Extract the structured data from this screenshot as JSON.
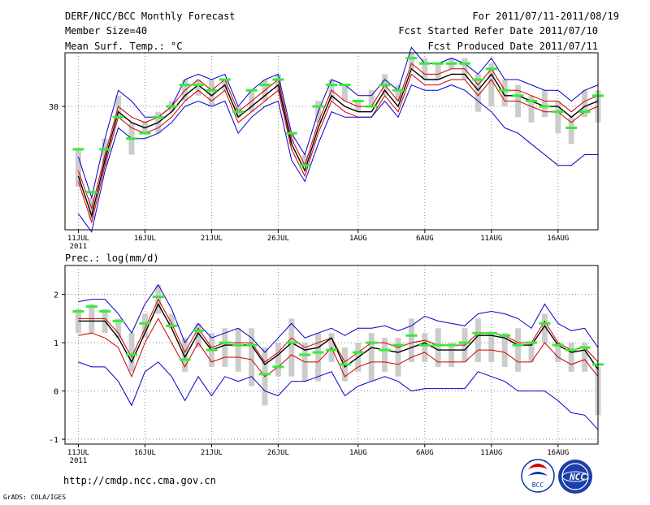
{
  "header": {
    "title": "DERF/NCC/BCC Monthly Forecast",
    "member_size": "Member Size=40",
    "variable": "Mean Surf. Temp.: °C",
    "period": "For 2011/07/11-2011/08/19",
    "started": "Fcst Started Refer Date 2011/07/10",
    "produced": "Fcst Produced Date 2011/07/11"
  },
  "x_ticks": [
    {
      "day": 0,
      "label": "11JUL"
    },
    {
      "day": 5,
      "label": "16JUL"
    },
    {
      "day": 10,
      "label": "21JUL"
    },
    {
      "day": 15,
      "label": "26JUL"
    },
    {
      "day": 21,
      "label": "1AUG"
    },
    {
      "day": 26,
      "label": "6AUG"
    },
    {
      "day": 31,
      "label": "11AUG"
    },
    {
      "day": 36,
      "label": "16AUG"
    }
  ],
  "year_label": "2011",
  "footer": {
    "url": "http://cmdp.ncc.cma.gov.cn",
    "credit": "GrADS: COLA/IGES",
    "logo1_text": "BCC",
    "logo2_text": "NCC"
  },
  "colors": {
    "blue": "#0000cc",
    "red": "#cc0000",
    "black": "#000000",
    "green": "#33ee33",
    "gray": "#cccccc",
    "grid": "#888888"
  },
  "chart_data": [
    {
      "type": "line",
      "title": "Mean Surf. Temp.: °C",
      "x_unit": "day since 2011-07-11",
      "xlim": [
        -1,
        39
      ],
      "ylim": [
        18.5,
        35.0
      ],
      "y_ticks": [
        30
      ],
      "grid": "dotted",
      "days": [
        0,
        1,
        2,
        3,
        4,
        5,
        6,
        7,
        8,
        9,
        10,
        11,
        12,
        13,
        14,
        15,
        16,
        17,
        18,
        19,
        20,
        21,
        22,
        23,
        24,
        25,
        26,
        27,
        28,
        29,
        30,
        31,
        32,
        33,
        34,
        35,
        36,
        37,
        38,
        39
      ],
      "series": [
        {
          "name": "max",
          "color": "blue",
          "values": [
            25.3,
            21.5,
            27.0,
            31.5,
            30.5,
            29.0,
            29.0,
            30.0,
            32.5,
            33.0,
            32.5,
            33.0,
            30.0,
            31.5,
            32.5,
            33.0,
            27.5,
            25.5,
            29.5,
            32.5,
            32.0,
            31.0,
            31.0,
            32.5,
            31.5,
            35.5,
            34.0,
            34.0,
            34.5,
            34.0,
            33.0,
            34.5,
            32.5,
            32.5,
            32.0,
            31.5,
            31.5,
            30.5,
            31.5,
            32.0
          ]
        },
        {
          "name": "upper",
          "color": "red",
          "values": [
            24.0,
            20.5,
            25.5,
            30.0,
            29.0,
            28.5,
            29.0,
            30.0,
            31.5,
            32.5,
            31.5,
            32.5,
            29.5,
            30.5,
            31.5,
            32.5,
            27.0,
            24.5,
            28.5,
            31.5,
            30.5,
            30.0,
            30.0,
            32.0,
            30.5,
            34.0,
            33.0,
            33.0,
            33.5,
            33.5,
            32.0,
            33.5,
            31.5,
            31.5,
            31.0,
            30.5,
            30.5,
            29.5,
            30.5,
            31.0
          ]
        },
        {
          "name": "mean",
          "color": "black",
          "values": [
            23.5,
            19.8,
            25.0,
            29.5,
            28.5,
            28.0,
            28.5,
            29.5,
            31.0,
            32.0,
            31.0,
            32.0,
            29.0,
            30.0,
            31.0,
            32.0,
            26.5,
            24.0,
            28.0,
            31.0,
            30.0,
            29.5,
            29.5,
            31.5,
            30.0,
            33.5,
            32.5,
            32.5,
            33.0,
            33.0,
            31.5,
            33.0,
            31.0,
            31.0,
            30.5,
            30.0,
            30.0,
            29.0,
            30.0,
            30.5
          ]
        },
        {
          "name": "lower",
          "color": "red",
          "values": [
            23.0,
            19.2,
            24.5,
            29.0,
            28.0,
            27.5,
            28.0,
            29.0,
            30.5,
            31.5,
            30.5,
            31.5,
            28.5,
            29.5,
            30.5,
            31.5,
            26.0,
            23.5,
            27.5,
            30.5,
            29.5,
            29.0,
            29.0,
            31.0,
            29.5,
            33.0,
            32.0,
            32.0,
            32.5,
            32.5,
            31.0,
            32.5,
            30.5,
            30.5,
            30.0,
            29.5,
            29.5,
            28.5,
            29.5,
            30.0
          ]
        },
        {
          "name": "min",
          "color": "blue",
          "values": [
            20.0,
            18.3,
            24.0,
            28.0,
            27.0,
            27.0,
            27.5,
            28.5,
            30.0,
            30.5,
            30.0,
            30.5,
            27.5,
            29.0,
            30.0,
            30.5,
            25.0,
            23.0,
            26.5,
            29.5,
            29.0,
            29.0,
            29.0,
            30.5,
            29.0,
            32.0,
            31.5,
            31.5,
            32.0,
            31.5,
            30.5,
            29.5,
            28.0,
            27.5,
            26.5,
            25.5,
            24.5,
            24.5,
            25.5,
            25.5
          ]
        }
      ],
      "range_bars": [
        [
          22.5,
          26.0
        ],
        [
          19.5,
          21.5
        ],
        [
          24.5,
          27.0
        ],
        [
          29.0,
          31.0
        ],
        [
          25.5,
          28.5
        ],
        [
          27.5,
          28.5
        ],
        [
          27.5,
          29.5
        ],
        [
          29.5,
          30.5
        ],
        [
          30.5,
          32.5
        ],
        [
          31.0,
          32.5
        ],
        [
          30.0,
          32.5
        ],
        [
          31.5,
          32.5
        ],
        [
          29.0,
          30.0
        ],
        [
          29.5,
          31.5
        ],
        [
          30.5,
          32.5
        ],
        [
          31.5,
          33.0
        ],
        [
          26.5,
          27.5
        ],
        [
          24.5,
          25.5
        ],
        [
          28.5,
          30.5
        ],
        [
          30.5,
          32.5
        ],
        [
          30.5,
          32.0
        ],
        [
          29.5,
          30.5
        ],
        [
          30.0,
          31.5
        ],
        [
          31.0,
          33.0
        ],
        [
          30.5,
          32.0
        ],
        [
          33.5,
          35.0
        ],
        [
          32.5,
          34.5
        ],
        [
          32.5,
          34.0
        ],
        [
          33.5,
          34.5
        ],
        [
          32.5,
          34.5
        ],
        [
          29.5,
          33.0
        ],
        [
          30.0,
          34.0
        ],
        [
          30.0,
          32.5
        ],
        [
          29.0,
          32.0
        ],
        [
          28.5,
          31.0
        ],
        [
          29.0,
          31.5
        ],
        [
          27.5,
          30.5
        ],
        [
          26.5,
          29.0
        ],
        [
          29.0,
          31.5
        ],
        [
          28.5,
          31.5
        ]
      ],
      "observed": [
        26.0,
        22.0,
        26.0,
        29.0,
        27.0,
        27.5,
        29.0,
        30.0,
        32.0,
        32.0,
        31.5,
        32.5,
        29.5,
        31.5,
        32.0,
        32.5,
        27.5,
        24.5,
        30.0,
        32.0,
        32.0,
        30.5,
        30.0,
        32.0,
        31.5,
        34.5,
        34.0,
        34.0,
        34.0,
        34.0,
        32.5,
        33.5,
        31.5,
        31.0,
        30.5,
        30.0,
        29.5,
        28.0,
        29.5,
        31.0
      ]
    },
    {
      "type": "line",
      "title": "Prec.: log(mm/d)",
      "x_unit": "day since 2011-07-11",
      "xlim": [
        -1,
        39
      ],
      "ylim": [
        -1.1,
        2.6
      ],
      "y_ticks": [
        -1,
        0,
        1,
        2
      ],
      "grid": "dotted",
      "days": [
        0,
        1,
        2,
        3,
        4,
        5,
        6,
        7,
        8,
        9,
        10,
        11,
        12,
        13,
        14,
        15,
        16,
        17,
        18,
        19,
        20,
        21,
        22,
        23,
        24,
        25,
        26,
        27,
        28,
        29,
        30,
        31,
        32,
        33,
        34,
        35,
        36,
        37,
        38,
        39
      ],
      "series": [
        {
          "name": "max",
          "color": "blue",
          "values": [
            1.85,
            1.9,
            1.9,
            1.6,
            1.2,
            1.8,
            2.2,
            1.7,
            1.0,
            1.4,
            1.1,
            1.2,
            1.3,
            1.1,
            0.8,
            1.1,
            1.4,
            1.1,
            1.2,
            1.3,
            1.15,
            1.3,
            1.3,
            1.35,
            1.25,
            1.35,
            1.55,
            1.45,
            1.4,
            1.35,
            1.6,
            1.65,
            1.6,
            1.5,
            1.3,
            1.8,
            1.4,
            1.25,
            1.3,
            0.9
          ]
        },
        {
          "name": "upper",
          "color": "red",
          "values": [
            1.5,
            1.5,
            1.5,
            1.2,
            0.7,
            1.3,
            1.9,
            1.4,
            0.8,
            1.3,
            0.9,
            1.0,
            1.0,
            1.0,
            0.6,
            0.8,
            1.1,
            0.9,
            1.0,
            1.1,
            0.6,
            0.8,
            1.0,
            1.0,
            0.9,
            1.0,
            1.05,
            0.95,
            0.95,
            0.95,
            1.2,
            1.2,
            1.15,
            1.0,
            1.0,
            1.45,
            1.0,
            0.85,
            0.9,
            0.6
          ]
        },
        {
          "name": "mean",
          "color": "black",
          "values": [
            1.45,
            1.45,
            1.45,
            1.1,
            0.6,
            1.2,
            1.8,
            1.3,
            0.7,
            1.2,
            0.85,
            0.95,
            0.95,
            0.95,
            0.55,
            0.75,
            1.0,
            0.85,
            0.9,
            1.1,
            0.5,
            0.7,
            0.9,
            0.85,
            0.8,
            0.9,
            1.0,
            0.85,
            0.85,
            0.85,
            1.15,
            1.15,
            1.1,
            0.95,
            0.95,
            1.35,
            0.95,
            0.8,
            0.85,
            0.45
          ]
        },
        {
          "name": "lower",
          "color": "red",
          "values": [
            1.15,
            1.2,
            1.1,
            0.9,
            0.3,
            1.0,
            1.5,
            1.0,
            0.5,
            1.0,
            0.6,
            0.7,
            0.7,
            0.65,
            0.3,
            0.5,
            0.75,
            0.6,
            0.6,
            0.9,
            0.3,
            0.5,
            0.6,
            0.6,
            0.55,
            0.7,
            0.8,
            0.6,
            0.6,
            0.6,
            0.85,
            0.85,
            0.8,
            0.6,
            0.6,
            1.0,
            0.7,
            0.55,
            0.65,
            0.3
          ]
        },
        {
          "name": "min",
          "color": "blue",
          "values": [
            0.6,
            0.5,
            0.5,
            0.2,
            -0.3,
            0.4,
            0.6,
            0.3,
            -0.2,
            0.3,
            -0.1,
            0.3,
            0.2,
            0.3,
            0.0,
            -0.1,
            0.2,
            0.2,
            0.3,
            0.4,
            -0.1,
            0.1,
            0.2,
            0.3,
            0.2,
            0.0,
            0.05,
            0.05,
            0.05,
            0.05,
            0.4,
            0.3,
            0.2,
            0.0,
            0.0,
            0.0,
            -0.2,
            -0.45,
            -0.5,
            -0.8
          ]
        }
      ],
      "range_bars": [
        [
          1.2,
          1.7
        ],
        [
          1.2,
          1.8
        ],
        [
          1.2,
          1.7
        ],
        [
          1.1,
          1.5
        ],
        [
          0.4,
          1.2
        ],
        [
          1.1,
          1.6
        ],
        [
          1.6,
          2.2
        ],
        [
          1.3,
          1.6
        ],
        [
          0.4,
          1.1
        ],
        [
          0.9,
          1.4
        ],
        [
          0.5,
          1.2
        ],
        [
          0.5,
          1.3
        ],
        [
          0.4,
          1.3
        ],
        [
          0.1,
          1.3
        ],
        [
          -0.3,
          0.9
        ],
        [
          0.3,
          1.0
        ],
        [
          0.3,
          1.5
        ],
        [
          0.2,
          1.0
        ],
        [
          0.2,
          1.2
        ],
        [
          0.6,
          1.2
        ],
        [
          0.2,
          0.9
        ],
        [
          0.4,
          1.0
        ],
        [
          0.2,
          1.2
        ],
        [
          0.4,
          1.1
        ],
        [
          0.3,
          1.1
        ],
        [
          0.6,
          1.5
        ],
        [
          0.6,
          1.2
        ],
        [
          0.5,
          1.3
        ],
        [
          0.5,
          1.0
        ],
        [
          0.6,
          1.3
        ],
        [
          0.6,
          1.5
        ],
        [
          0.6,
          1.2
        ],
        [
          0.5,
          1.2
        ],
        [
          0.4,
          1.3
        ],
        [
          0.6,
          1.0
        ],
        [
          1.0,
          1.6
        ],
        [
          0.6,
          1.0
        ],
        [
          0.4,
          1.0
        ],
        [
          0.4,
          1.0
        ],
        [
          -0.5,
          0.5
        ]
      ],
      "observed": [
        1.65,
        1.75,
        1.65,
        1.45,
        0.75,
        1.4,
        1.95,
        1.35,
        0.65,
        1.25,
        0.85,
        1.0,
        0.95,
        0.95,
        0.35,
        0.5,
        1.0,
        0.75,
        0.8,
        0.85,
        0.55,
        0.8,
        1.0,
        0.85,
        0.95,
        1.15,
        0.95,
        0.95,
        0.95,
        1.0,
        1.2,
        1.2,
        1.15,
        0.95,
        1.0,
        1.4,
        0.95,
        0.85,
        0.9,
        0.55
      ]
    }
  ]
}
